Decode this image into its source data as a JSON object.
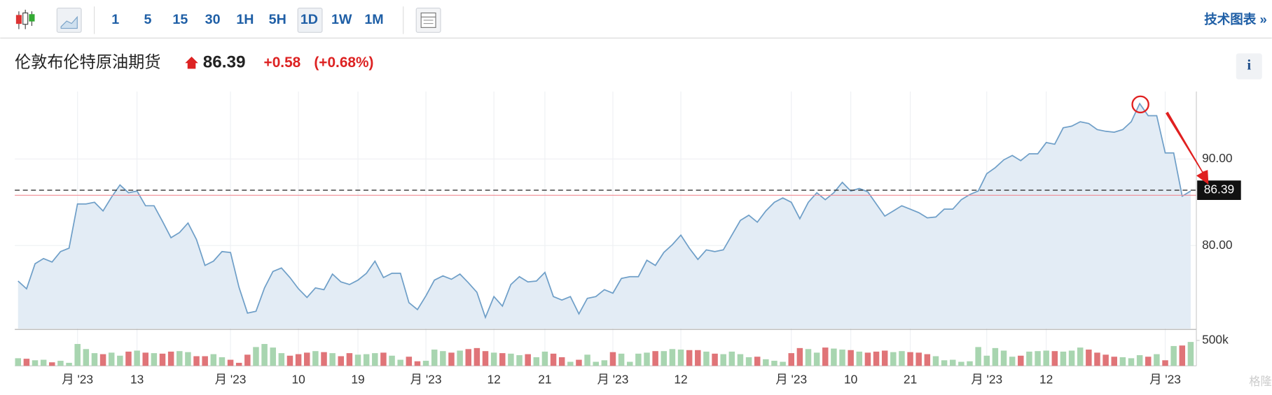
{
  "toolbar": {
    "intervals": [
      "1",
      "5",
      "15",
      "30",
      "1H",
      "5H",
      "1D",
      "1W",
      "1M"
    ],
    "selected": 6,
    "technical": "技术图表 »"
  },
  "header": {
    "title": "伦敦布伦特原油期货",
    "price": "86.39",
    "change": "+0.58",
    "change_pct": "(+0.68%)",
    "info": "i"
  },
  "watermark": "格隆汇",
  "chart_data": [
    {
      "type": "area",
      "color": "#6f9fc8",
      "fill": "#e3ecf5",
      "grid": true,
      "categories": [
        null,
        null,
        null,
        null,
        null,
        null,
        null,
        "月 '23",
        null,
        null,
        null,
        null,
        null,
        null,
        "13",
        null,
        null,
        null,
        null,
        null,
        null,
        null,
        null,
        null,
        null,
        "月 '23",
        null,
        null,
        null,
        null,
        null,
        null,
        null,
        "10",
        null,
        null,
        null,
        null,
        null,
        null,
        "19",
        null,
        null,
        null,
        null,
        null,
        null,
        null,
        "月 '23",
        null,
        null,
        null,
        null,
        null,
        null,
        null,
        "12",
        null,
        null,
        null,
        null,
        null,
        "21",
        null,
        null,
        null,
        null,
        null,
        null,
        null,
        "月 '23",
        null,
        null,
        null,
        null,
        null,
        null,
        null,
        "12",
        null,
        null,
        null,
        null,
        null,
        null,
        null,
        null,
        null,
        null,
        null,
        null,
        "月 '23",
        null,
        null,
        null,
        null,
        null,
        null,
        "10",
        null,
        null,
        null,
        null,
        null,
        null,
        "21",
        null,
        null,
        null,
        null,
        null,
        null,
        null,
        null,
        "月 '23",
        null,
        null,
        null,
        null,
        null,
        null,
        "12",
        null,
        null,
        null,
        null,
        null,
        null,
        null,
        null,
        null,
        null,
        null,
        null,
        null,
        "月 '23",
        null,
        null,
        null
      ],
      "values": [
        75.9,
        75.0,
        77.9,
        78.5,
        78.1,
        79.3,
        79.7,
        84.8,
        84.8,
        85.0,
        84.0,
        85.6,
        87.0,
        86.1,
        86.3,
        84.6,
        84.6,
        82.8,
        80.9,
        81.5,
        82.6,
        80.7,
        77.7,
        78.2,
        79.3,
        79.2,
        75.2,
        72.2,
        72.4,
        75.1,
        77.0,
        77.4,
        76.3,
        75.0,
        74.0,
        75.1,
        74.9,
        76.7,
        75.8,
        75.5,
        76.0,
        76.8,
        78.2,
        76.3,
        76.8,
        76.8,
        73.4,
        72.6,
        74.2,
        76.0,
        76.5,
        76.1,
        76.7,
        75.7,
        74.6,
        71.7,
        74.1,
        73.0,
        75.5,
        76.4,
        75.8,
        75.9,
        76.9,
        74.1,
        73.7,
        74.1,
        72.1,
        73.9,
        74.1,
        74.9,
        74.5,
        76.2,
        76.4,
        76.4,
        78.3,
        77.7,
        79.2,
        80.1,
        81.2,
        79.7,
        78.4,
        79.5,
        79.3,
        79.5,
        81.2,
        82.9,
        83.5,
        82.7,
        84.0,
        85.0,
        85.5,
        85.0,
        83.1,
        85.0,
        86.1,
        85.3,
        86.1,
        87.3,
        86.3,
        86.6,
        86.2,
        84.8,
        83.4,
        84.0,
        84.6,
        84.2,
        83.8,
        83.2,
        83.3,
        84.2,
        84.2,
        85.3,
        85.9,
        86.3,
        88.3,
        89.0,
        89.9,
        90.4,
        89.8,
        90.6,
        90.6,
        91.9,
        91.7,
        93.6,
        93.8,
        94.3,
        94.1,
        93.4,
        93.2,
        93.1,
        93.4,
        94.3,
        96.4,
        95.0,
        95.0,
        90.7,
        90.7,
        85.7,
        86.3
      ],
      "ylim": [
        70.4,
        97.8
      ],
      "yticks": [
        {
          "value": 90,
          "label": "90.00"
        },
        {
          "value": 80,
          "label": "80.00"
        }
      ],
      "last_price": 86.39,
      "previous_close": 85.81
    },
    {
      "type": "bar",
      "up_color": "#a8d5b0",
      "down_color": "#e07478",
      "ylim": [
        0,
        700000
      ],
      "yticks": [
        {
          "value": 500000,
          "label": "500k"
        }
      ],
      "values": [
        150000,
        140000,
        110000,
        120000,
        70000,
        100000,
        60000,
        430000,
        330000,
        250000,
        230000,
        260000,
        200000,
        280000,
        300000,
        260000,
        250000,
        240000,
        280000,
        290000,
        270000,
        190000,
        190000,
        230000,
        170000,
        120000,
        60000,
        220000,
        370000,
        430000,
        360000,
        250000,
        200000,
        230000,
        260000,
        290000,
        270000,
        250000,
        190000,
        250000,
        220000,
        230000,
        250000,
        260000,
        200000,
        120000,
        180000,
        90000,
        100000,
        320000,
        290000,
        260000,
        300000,
        330000,
        350000,
        290000,
        260000,
        250000,
        240000,
        210000,
        230000,
        170000,
        280000,
        240000,
        170000,
        80000,
        120000,
        220000,
        80000,
        110000,
        270000,
        240000,
        80000,
        240000,
        260000,
        290000,
        290000,
        330000,
        320000,
        310000,
        310000,
        280000,
        240000,
        230000,
        280000,
        230000,
        170000,
        180000,
        130000,
        100000,
        80000,
        250000,
        350000,
        330000,
        260000,
        360000,
        340000,
        320000,
        310000,
        280000,
        260000,
        280000,
        300000,
        270000,
        290000,
        270000,
        260000,
        230000,
        190000,
        110000,
        120000,
        80000,
        90000,
        370000,
        200000,
        350000,
        300000,
        180000,
        200000,
        280000,
        290000,
        300000,
        290000,
        280000,
        300000,
        360000,
        320000,
        260000,
        220000,
        180000,
        170000,
        150000,
        210000,
        180000,
        230000,
        110000,
        390000,
        400000,
        470000
      ]
    }
  ]
}
